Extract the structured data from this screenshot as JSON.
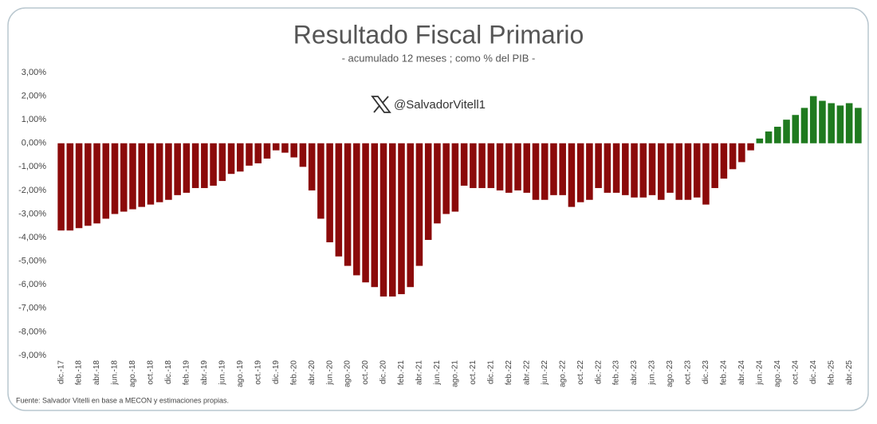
{
  "chart_data": {
    "type": "bar",
    "title": "Resultado Fiscal Primario",
    "subtitle": "- acumulado 12 meses ; como % del PIB -",
    "watermark": "@SalvadorVitell1",
    "source": "Fuente: Salvador Vitelli en base a MECON y estimaciones propias.",
    "negative_color": "#8b0a0a",
    "positive_color": "#1f7a1f",
    "ylim": [
      -9,
      3
    ],
    "yticks": [
      {
        "value": 3,
        "label": "3,00%"
      },
      {
        "value": 2,
        "label": "2,00%"
      },
      {
        "value": 1,
        "label": "1,00%"
      },
      {
        "value": 0,
        "label": "0,00%"
      },
      {
        "value": -1,
        "label": "-1,00%"
      },
      {
        "value": -2,
        "label": "-2,00%"
      },
      {
        "value": -3,
        "label": "-3,00%"
      },
      {
        "value": -4,
        "label": "-4,00%"
      },
      {
        "value": -5,
        "label": "-5,00%"
      },
      {
        "value": -6,
        "label": "-6,00%"
      },
      {
        "value": -7,
        "label": "-7,00%"
      },
      {
        "value": -8,
        "label": "-8,00%"
      },
      {
        "value": -9,
        "label": "-9,00%"
      }
    ],
    "categories": [
      "dic.-17",
      null,
      "feb.-18",
      null,
      "abr.-18",
      null,
      "jun.-18",
      null,
      "ago.-18",
      null,
      "oct.-18",
      null,
      "dic.-18",
      null,
      "feb.-19",
      null,
      "abr.-19",
      null,
      "jun.-19",
      null,
      "ago.-19",
      null,
      "oct.-19",
      null,
      "dic.-19",
      null,
      "feb.-20",
      null,
      "abr.-20",
      null,
      "jun.-20",
      null,
      "ago.-20",
      null,
      "oct.-20",
      null,
      "dic.-20",
      null,
      "feb.-21",
      null,
      "abr.-21",
      null,
      "jun.-21",
      null,
      "ago.-21",
      null,
      "oct.-21",
      null,
      "dic.-21",
      null,
      "feb.-22",
      null,
      "abr.-22",
      null,
      "jun.-22",
      null,
      "ago.-22",
      null,
      "oct.-22",
      null,
      "dic.-22",
      null,
      "feb.-23",
      null,
      "abr.-23",
      null,
      "jun.-23",
      null,
      "ago.-23",
      null,
      "oct.-23",
      null,
      "dic.-23",
      null,
      "feb.-24",
      null,
      "abr.-24",
      null,
      "jun.-24",
      null,
      "ago.-24",
      null,
      "oct.-24",
      null,
      "dic.-24",
      null,
      "feb.-25",
      null,
      "abr.-25",
      null
    ],
    "values": [
      -3.7,
      -3.7,
      -3.6,
      -3.5,
      -3.4,
      -3.2,
      -3.0,
      -2.9,
      -2.8,
      -2.7,
      -2.6,
      -2.5,
      -2.4,
      -2.2,
      -2.1,
      -1.9,
      -1.9,
      -1.8,
      -1.6,
      -1.3,
      -1.2,
      -0.95,
      -0.85,
      -0.65,
      -0.3,
      -0.4,
      -0.6,
      -1.0,
      -2.0,
      -3.2,
      -4.2,
      -4.8,
      -5.2,
      -5.6,
      -5.9,
      -6.1,
      -6.5,
      -6.5,
      -6.4,
      -6.1,
      -5.2,
      -4.1,
      -3.4,
      -3.0,
      -2.9,
      -1.8,
      -1.9,
      -1.9,
      -1.9,
      -2.0,
      -2.1,
      -2.0,
      -2.1,
      -2.4,
      -2.4,
      -2.2,
      -2.2,
      -2.7,
      -2.5,
      -2.4,
      -1.9,
      -2.1,
      -2.1,
      -2.2,
      -2.3,
      -2.3,
      -2.2,
      -2.4,
      -2.1,
      -2.4,
      -2.4,
      -2.3,
      -2.6,
      -1.9,
      -1.5,
      -1.1,
      -0.8,
      -0.3,
      0.2,
      0.5,
      0.7,
      1.0,
      1.2,
      1.5,
      2.0,
      1.8,
      1.7,
      1.6,
      1.7,
      1.5
    ]
  }
}
